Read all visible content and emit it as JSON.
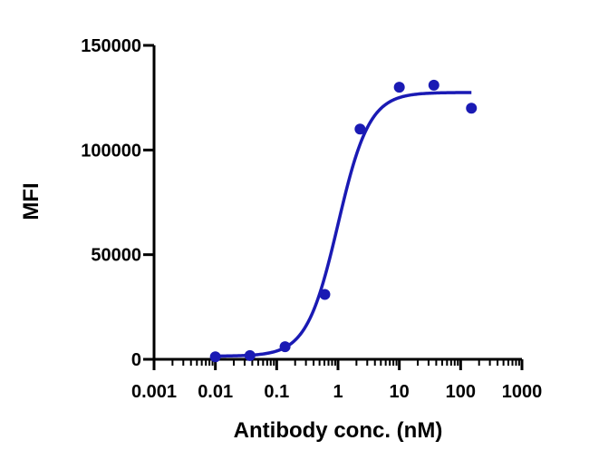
{
  "chart_data": {
    "type": "scatter",
    "title": "",
    "xlabel": "Antibody conc. (nM)",
    "ylabel": "MFI",
    "x_scale": "log",
    "xlim": [
      0.001,
      1000
    ],
    "ylim": [
      0,
      150000
    ],
    "x_ticks": [
      0.001,
      0.01,
      0.1,
      1,
      10,
      100,
      1000
    ],
    "x_tick_labels": [
      "0.001",
      "0.01",
      "0.1",
      "1",
      "10",
      "100",
      "1000"
    ],
    "y_ticks": [
      0,
      50000,
      100000,
      150000
    ],
    "y_tick_labels": [
      "0",
      "50000",
      "100000",
      "150000"
    ],
    "grid": false,
    "legend": "none",
    "color": "#1a1ab4",
    "series": [
      {
        "x": [
          0.01,
          0.0366,
          0.137,
          0.61,
          2.29,
          10,
          36.6,
          150
        ],
        "y": [
          1200,
          1800,
          6000,
          31000,
          110000,
          130000,
          131000,
          120000
        ]
      }
    ],
    "fit": {
      "type": "4PL",
      "bottom": 1500,
      "top": 127500,
      "ec50": 1.0,
      "hill": 1.7,
      "x_range": [
        0.01,
        150
      ]
    }
  }
}
